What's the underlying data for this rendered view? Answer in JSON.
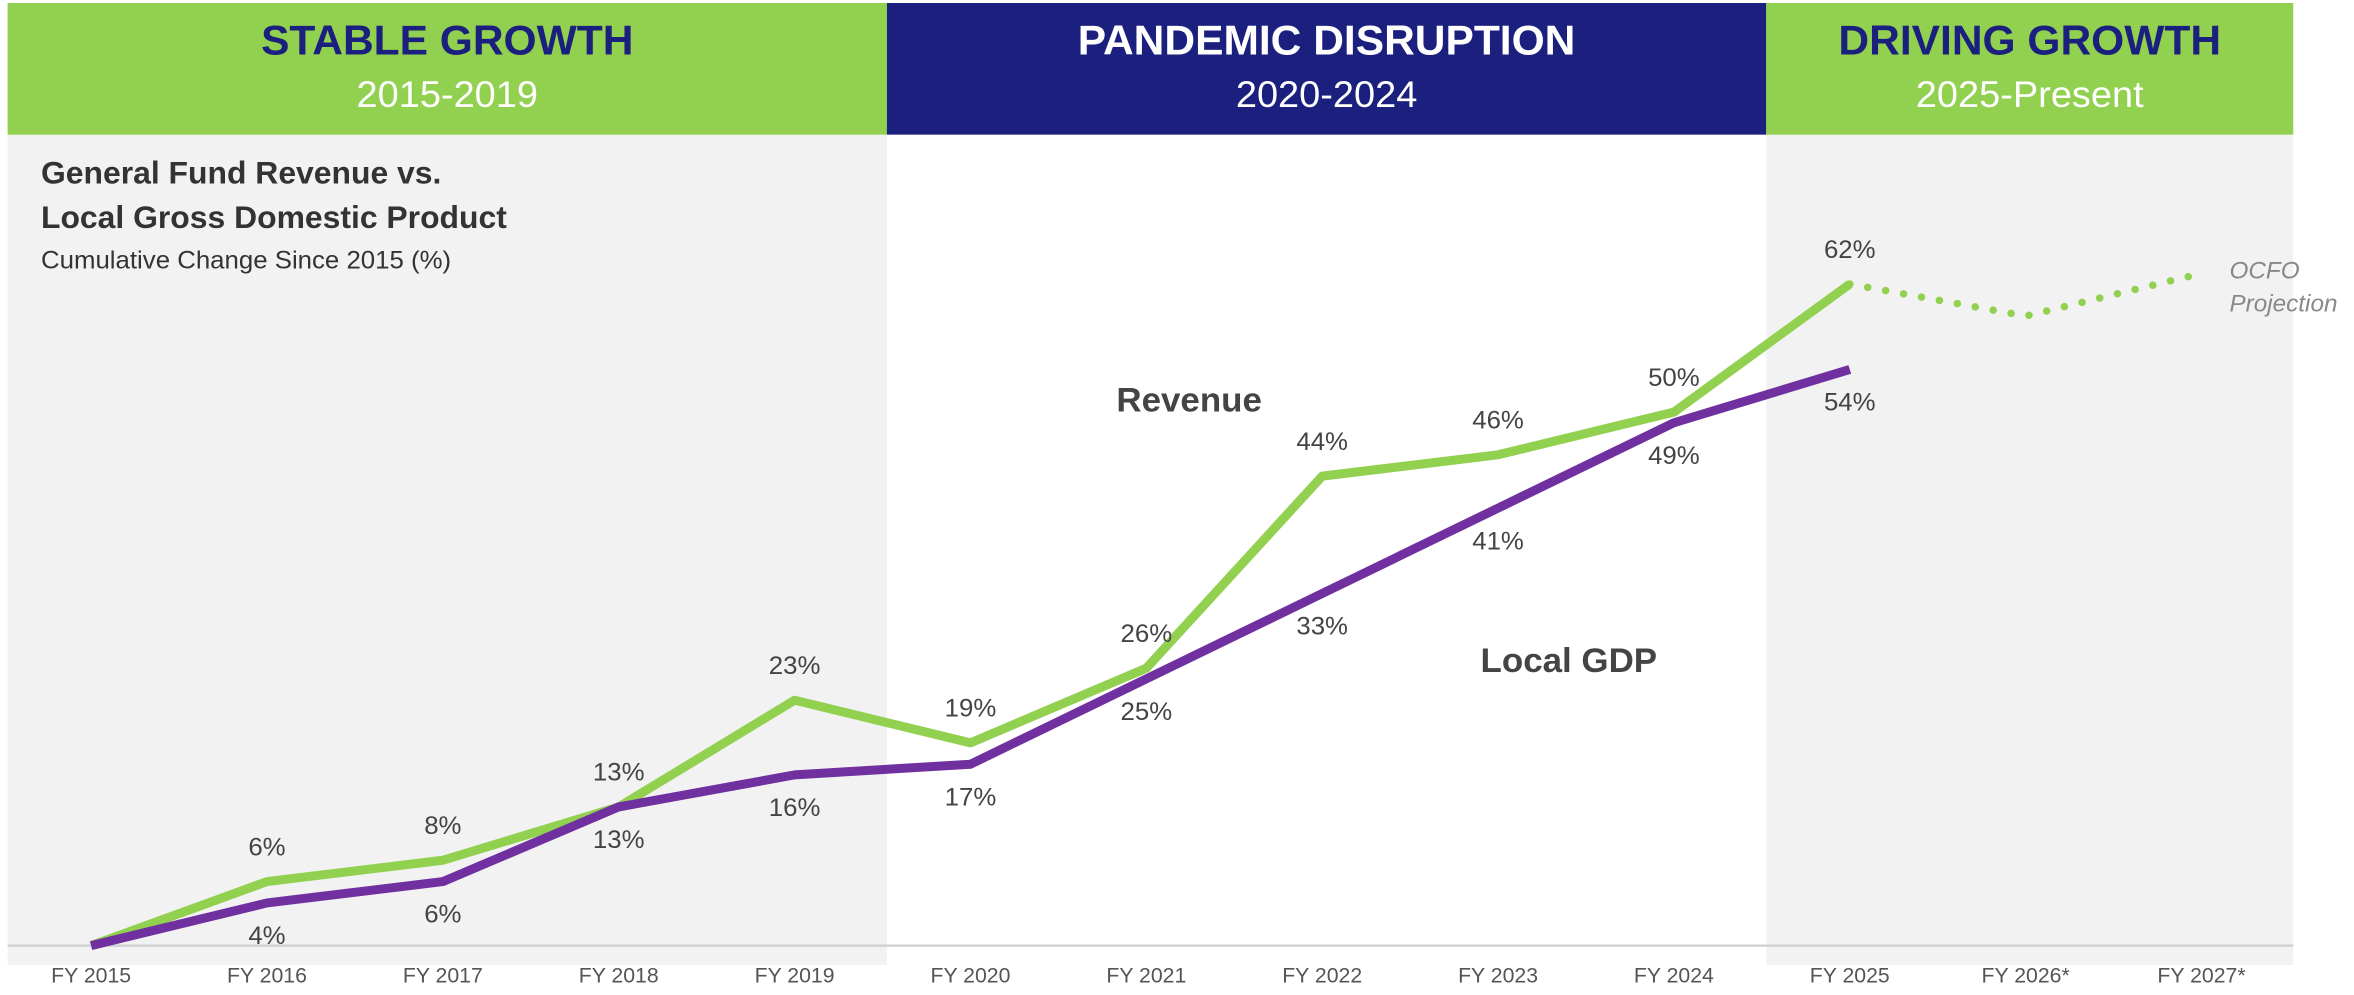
{
  "chart_data": {
    "type": "line",
    "title_lines": [
      "General Fund Revenue vs.",
      "Local Gross Domestic Product"
    ],
    "subtitle": "Cumulative Change Since 2015 (%)",
    "eras": [
      {
        "title": "STABLE GROWTH",
        "subtitle": "2015-2019"
      },
      {
        "title": "PANDEMIC DISRUPTION",
        "subtitle": "2020-2024"
      },
      {
        "title": "DRIVING GROWTH",
        "subtitle": "2025-Present"
      }
    ],
    "categories": [
      "FY 2015",
      "FY 2016",
      "FY 2017",
      "FY 2018",
      "FY 2019",
      "FY 2020",
      "FY 2021",
      "FY 2022",
      "FY 2023",
      "FY 2024",
      "FY 2025",
      "FY 2026*",
      "FY 2027*"
    ],
    "series": [
      {
        "name": "Revenue",
        "color": "#92d050",
        "values": [
          0,
          6,
          8,
          13,
          23,
          19,
          26,
          44,
          46,
          50,
          62,
          null,
          null
        ],
        "value_labels": [
          null,
          "6%",
          "8%",
          "13%",
          "23%",
          "19%",
          "26%",
          "44%",
          "46%",
          "50%",
          "62%",
          null,
          null
        ]
      },
      {
        "name": "Local GDP",
        "color": "#7030a0",
        "values": [
          0,
          4,
          6,
          13,
          16,
          17,
          25,
          33,
          41,
          49,
          54,
          null,
          null
        ],
        "value_labels": [
          null,
          "4%",
          "6%",
          "13%",
          "16%",
          "17%",
          "25%",
          "33%",
          "41%",
          "49%",
          "54%",
          null,
          null
        ]
      },
      {
        "name_lines": [
          "OCFO",
          "Projection"
        ],
        "color": "#92d050",
        "dashed": true,
        "values": [
          null,
          null,
          null,
          null,
          null,
          null,
          null,
          null,
          null,
          null,
          62,
          59,
          63
        ]
      }
    ],
    "ylim": [
      0,
      76
    ]
  }
}
